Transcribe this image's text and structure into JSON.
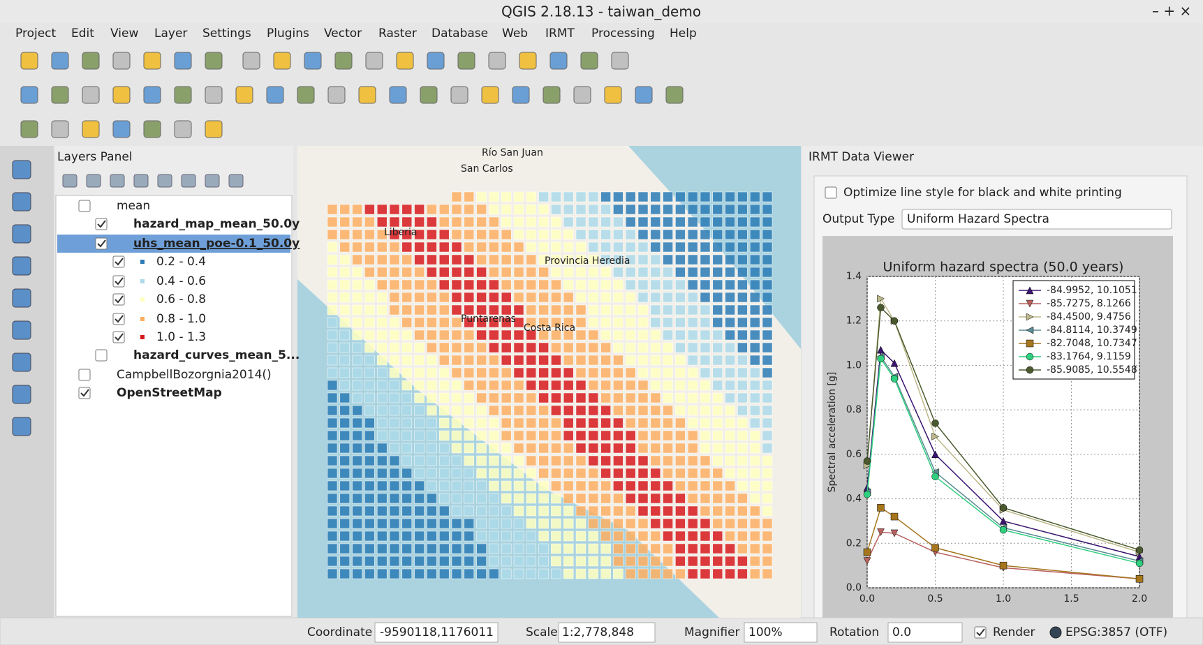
{
  "window": {
    "title": "QGIS 2.18.13 - taiwan_demo"
  },
  "menu": [
    "Project",
    "Edit",
    "View",
    "Layer",
    "Settings",
    "Plugins",
    "Vector",
    "Raster",
    "Database",
    "Web",
    "IRMT",
    "Processing",
    "Help"
  ],
  "layers_panel": {
    "title": "Layers Panel",
    "layers": [
      {
        "label": "mean",
        "checked": false,
        "level": 0,
        "bold": false
      },
      {
        "label": "hazard_map_mean_50.0y",
        "checked": true,
        "level": 1,
        "bold": true
      },
      {
        "label": "uhs_mean_poe-0.1_50.0y",
        "checked": true,
        "level": 1,
        "bold": true,
        "selected": true
      },
      {
        "label": "0.2 - 0.4",
        "checked": true,
        "level": 2,
        "color": "#2c7bb6"
      },
      {
        "label": "0.4 - 0.6",
        "checked": true,
        "level": 2,
        "color": "#abd9e9"
      },
      {
        "label": "0.6 - 0.8",
        "checked": true,
        "level": 2,
        "color": "#ffffbf"
      },
      {
        "label": "0.8 - 1.0",
        "checked": true,
        "level": 2,
        "color": "#fdae61"
      },
      {
        "label": "1.0 - 1.3",
        "checked": true,
        "level": 2,
        "color": "#d7191c"
      },
      {
        "label": "hazard_curves_mean_5...",
        "checked": false,
        "level": 1,
        "bold": true
      },
      {
        "label": "CampbellBozorgnia2014()",
        "checked": false,
        "level": 0,
        "bold": false
      },
      {
        "label": "OpenStreetMap",
        "checked": true,
        "level": 0,
        "bold": true
      }
    ]
  },
  "map": {
    "labels": [
      "Río San Juan",
      "San Carlos",
      "Liberia",
      "Puntarenas",
      "Costa Rica",
      "Provincia Heredia"
    ]
  },
  "data_viewer": {
    "title": "IRMT Data Viewer",
    "bw_option": "Optimize line style for black and white printing",
    "bw_checked": false,
    "output_type_label": "Output Type",
    "output_type": "Uniform Hazard Spectra",
    "chart": {
      "type": "line",
      "title": "Uniform hazard spectra (50.0 years)",
      "y_label": "Spectral acceleration [g]",
      "x": [
        0,
        0.1,
        0.2,
        0.5,
        1,
        2
      ],
      "xlim": [
        0,
        2
      ],
      "ylim": [
        0,
        1.4
      ],
      "xticks": [
        {
          "value": 0,
          "label": "0.0"
        },
        0.5,
        {
          "value": 1,
          "label": "1.0"
        },
        1.5,
        {
          "value": 2,
          "label": "2.0"
        }
      ],
      "yticks": [
        {
          "value": 0,
          "label": "0.0"
        },
        0.2,
        0.4,
        0.6,
        0.8,
        {
          "value": 1,
          "label": "1.0"
        },
        1.2,
        1.4
      ],
      "grid": true,
      "legend": "upper right",
      "series": [
        {
          "name": "-84.9952, 10.1051",
          "color": "#3a1670",
          "marker": "triangle-up",
          "values": [
            0.45,
            1.07,
            1.01,
            0.6,
            0.3,
            0.14
          ]
        },
        {
          "name": "-85.7275, 8.1266",
          "color": "#b8615e",
          "marker": "triangle-down",
          "values": [
            0.12,
            0.25,
            0.245,
            0.16,
            0.09,
            0.04
          ]
        },
        {
          "name": "-84.4500, 9.4756",
          "color": "#bdb88a",
          "marker": "triangle-right",
          "values": [
            0.55,
            1.3,
            1.2,
            0.68,
            0.35,
            0.16
          ]
        },
        {
          "name": "-84.8114, 10.3749",
          "color": "#5c8c94",
          "marker": "triangle-left",
          "values": [
            0.43,
            1.04,
            0.95,
            0.52,
            0.27,
            0.12
          ]
        },
        {
          "name": "-82.7048, 10.7347",
          "color": "#a5761e",
          "marker": "square",
          "values": [
            0.16,
            0.36,
            0.32,
            0.18,
            0.1,
            0.04
          ]
        },
        {
          "name": "-83.1764, 9.1159",
          "color": "#2fcf7f",
          "marker": "circle",
          "values": [
            0.42,
            1.03,
            0.94,
            0.5,
            0.26,
            0.11
          ]
        },
        {
          "name": "-85.9085, 10.5548",
          "color": "#4a5a2e",
          "marker": "circle",
          "values": [
            0.57,
            1.26,
            1.2,
            0.74,
            0.36,
            0.17
          ]
        }
      ]
    }
  },
  "status_bar": {
    "coordinate_label": "Coordinate",
    "coordinate": "-9590118,1176011",
    "scale_label": "Scale",
    "scale": "1:2,778,848",
    "magnifier_label": "Magnifier",
    "magnifier": "100%",
    "rotation_label": "Rotation",
    "rotation": "0.0",
    "render_label": "Render",
    "render_checked": true,
    "crs": "EPSG:3857 (OTF)"
  }
}
